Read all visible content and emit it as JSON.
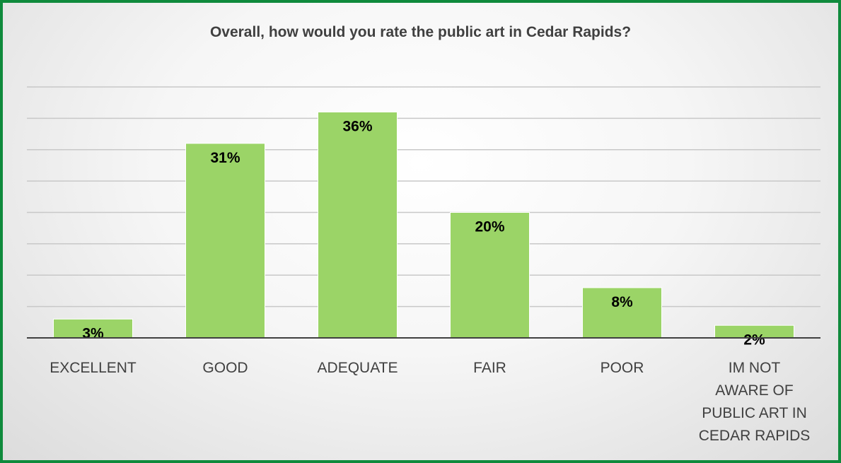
{
  "chart_data": {
    "type": "bar",
    "title": "Overall, how would you rate the public art in Cedar Rapids?",
    "categories": [
      [
        "EXCELLENT"
      ],
      [
        "GOOD"
      ],
      [
        "ADEQUATE"
      ],
      [
        "FAIR"
      ],
      [
        "POOR"
      ],
      [
        "IM NOT",
        "AWARE OF",
        "PUBLIC ART IN",
        "CEDAR RAPIDS"
      ]
    ],
    "values": [
      3,
      31,
      36,
      20,
      8,
      2
    ],
    "value_labels": [
      "3%",
      "31%",
      "36%",
      "20%",
      "8%",
      "2%"
    ],
    "ylim": [
      0,
      40
    ],
    "grid": true,
    "bar_color": "#9bd467",
    "frame_color": "#0f8a3c"
  }
}
